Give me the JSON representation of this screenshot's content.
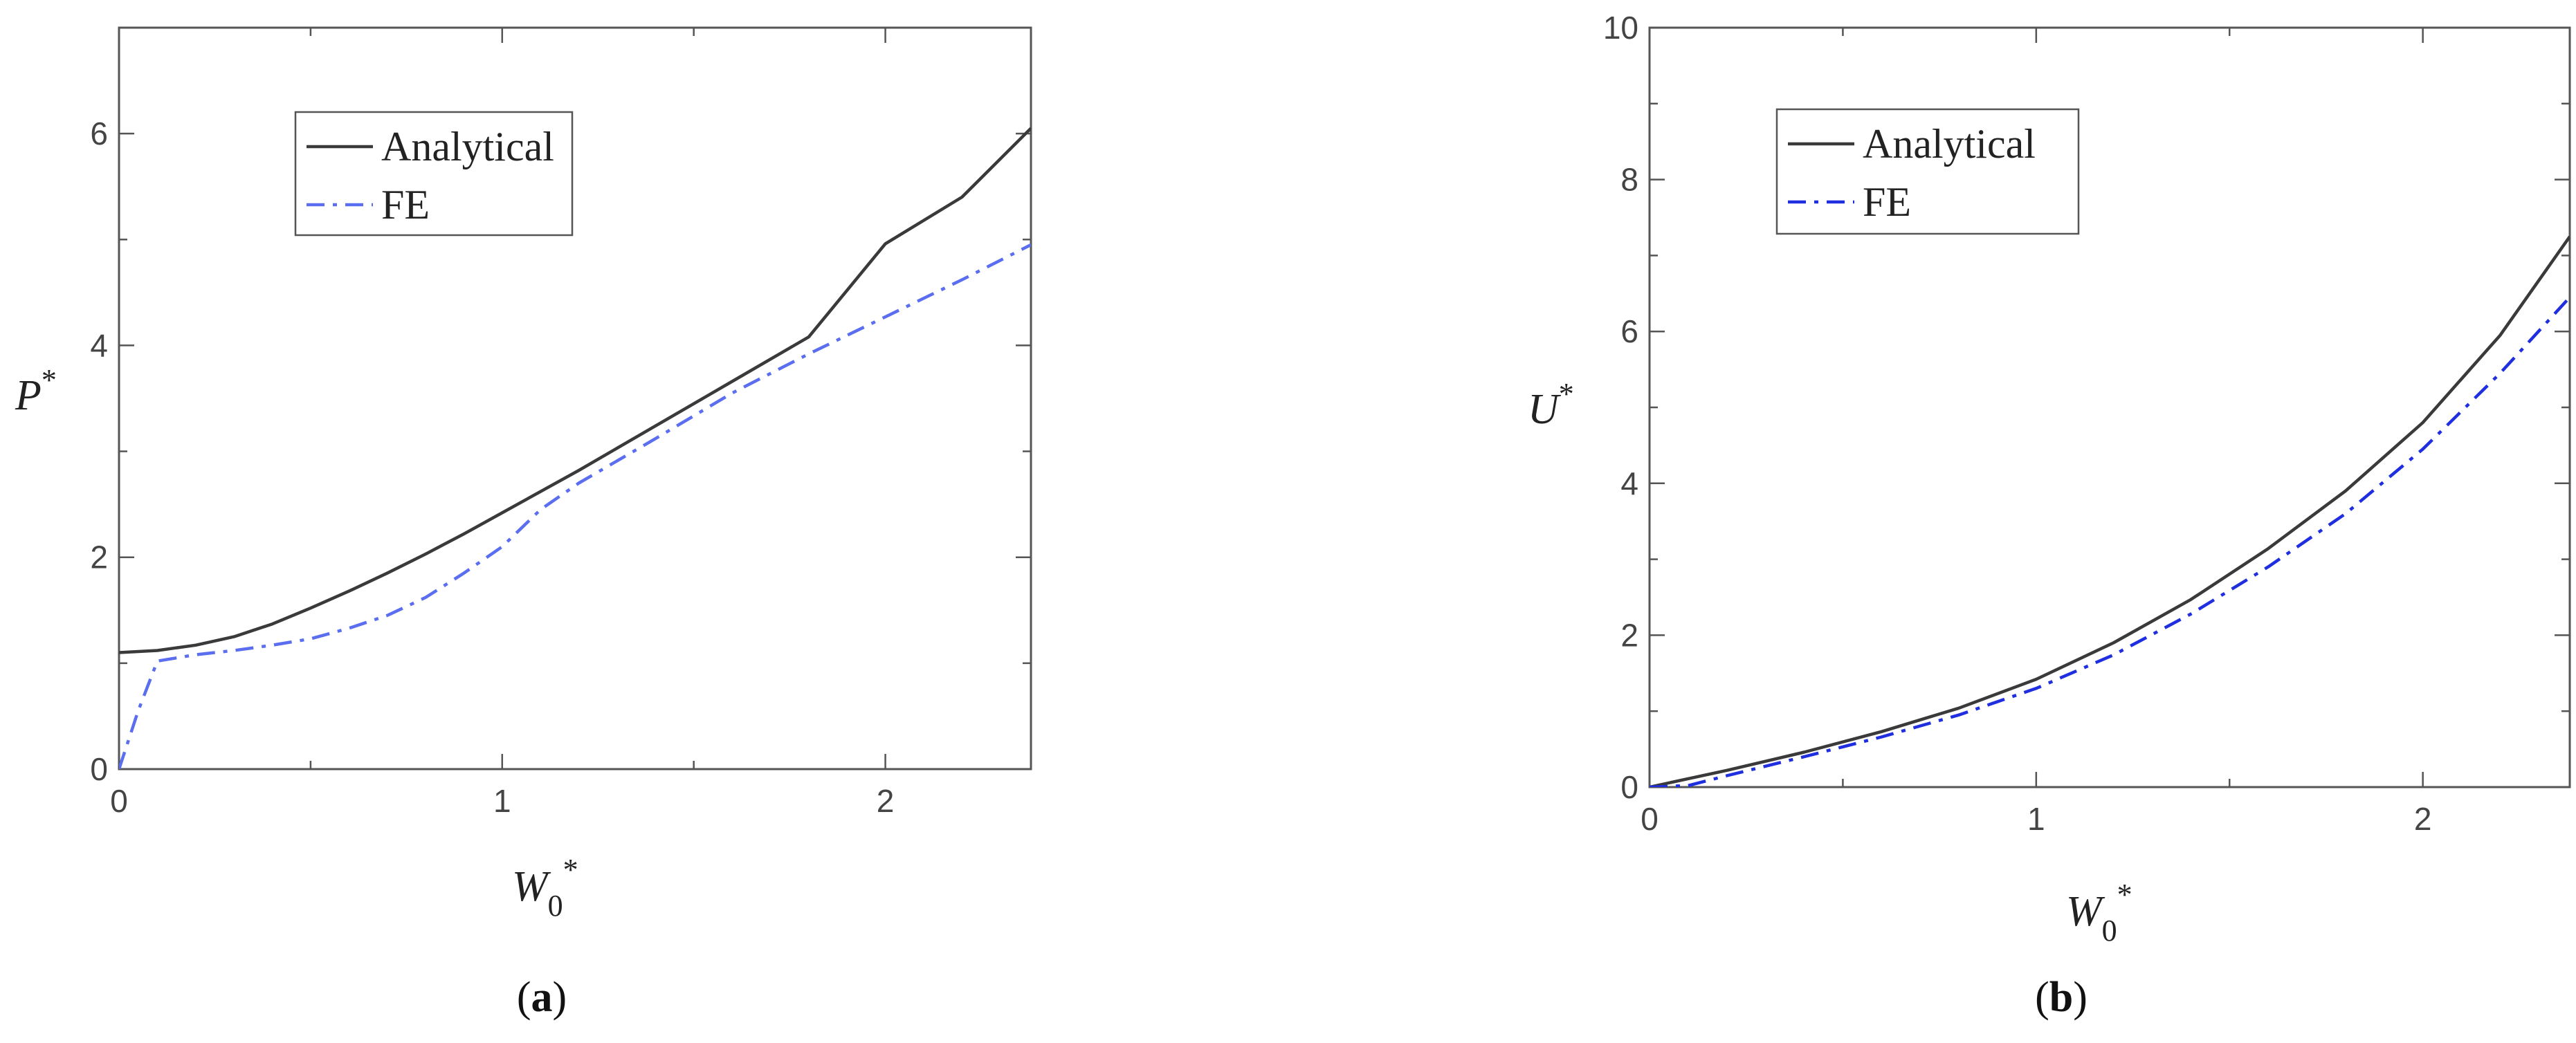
{
  "chart_data": [
    {
      "type": "line",
      "panel_label": "a",
      "caption_open": "(",
      "caption_close": ")",
      "xlabel": "W",
      "xlabel_sub": "0",
      "xlabel_sup": "*",
      "ylabel": "P",
      "ylabel_sup": "*",
      "xlim": [
        0,
        2.38
      ],
      "ylim": [
        0,
        7
      ],
      "xticks": [
        0,
        1,
        2
      ],
      "yticks": [
        0,
        2,
        4,
        6
      ],
      "legend_position": "top-left",
      "series": [
        {
          "name": "Analytical",
          "style": "solid",
          "color": "#3a3a3a",
          "x": [
            0,
            0.1,
            0.2,
            0.3,
            0.4,
            0.5,
            0.6,
            0.7,
            0.8,
            0.9,
            1.0,
            1.2,
            1.4,
            1.6,
            1.8,
            2.0,
            2.2,
            2.38
          ],
          "y": [
            1.1,
            1.12,
            1.17,
            1.25,
            1.37,
            1.52,
            1.68,
            1.85,
            2.03,
            2.22,
            2.42,
            2.82,
            3.24,
            3.66,
            4.08,
            4.96,
            5.4,
            6.05
          ]
        },
        {
          "name": "FE",
          "style": "dash-dot",
          "color": "#5b6ef0",
          "x": [
            0,
            0.05,
            0.1,
            0.2,
            0.3,
            0.4,
            0.5,
            0.6,
            0.7,
            0.8,
            0.9,
            1.0,
            1.1,
            1.2,
            1.4,
            1.6,
            1.8,
            2.0,
            2.2,
            2.38
          ],
          "y": [
            0,
            0.55,
            1.02,
            1.08,
            1.12,
            1.17,
            1.23,
            1.33,
            1.45,
            1.62,
            1.85,
            2.1,
            2.45,
            2.7,
            3.12,
            3.55,
            3.92,
            4.27,
            4.62,
            4.95
          ]
        }
      ]
    },
    {
      "type": "line",
      "panel_label": "b",
      "caption_open": "(",
      "caption_close": ")",
      "xlabel": "W",
      "xlabel_sub": "0",
      "xlabel_sup": "*",
      "ylabel": "U",
      "ylabel_sup": "*",
      "xlim": [
        0,
        2.38
      ],
      "ylim": [
        0,
        10
      ],
      "xticks": [
        0,
        1,
        2
      ],
      "yticks": [
        0,
        2,
        4,
        6,
        8,
        10
      ],
      "legend_position": "top-left",
      "series": [
        {
          "name": "Analytical",
          "style": "solid",
          "color": "#3a3a3a",
          "x": [
            0,
            0.2,
            0.4,
            0.6,
            0.8,
            1.0,
            1.2,
            1.4,
            1.6,
            1.8,
            2.0,
            2.2,
            2.38
          ],
          "y": [
            0,
            0.22,
            0.46,
            0.73,
            1.04,
            1.42,
            1.9,
            2.47,
            3.14,
            3.9,
            4.8,
            5.95,
            7.25
          ]
        },
        {
          "name": "FE",
          "style": "dash-dot",
          "color": "#1f2fe0",
          "x": [
            0,
            0.1,
            0.2,
            0.4,
            0.6,
            0.8,
            1.0,
            1.2,
            1.4,
            1.6,
            1.8,
            2.0,
            2.2,
            2.38
          ],
          "y": [
            0,
            0.02,
            0.15,
            0.4,
            0.66,
            0.95,
            1.3,
            1.74,
            2.28,
            2.9,
            3.6,
            4.45,
            5.45,
            6.45
          ]
        }
      ]
    }
  ]
}
